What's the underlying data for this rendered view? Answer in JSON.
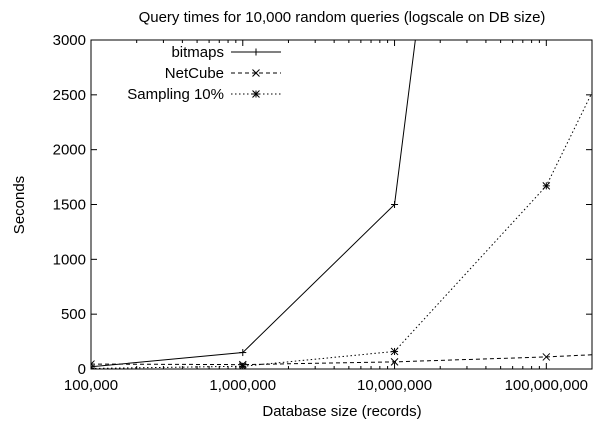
{
  "chart_data": {
    "type": "line",
    "title": "Query times for 10,000 random queries (logscale on DB size)",
    "xlabel": "Database size (records)",
    "ylabel": "Seconds",
    "x_scale": "log",
    "xlim": [
      100000,
      200000000
    ],
    "ylim": [
      0,
      3000
    ],
    "x_ticks": [
      100000,
      1000000,
      10000000,
      100000000
    ],
    "x_tick_labels": [
      "100,000",
      "1,000,000",
      "10,000,000",
      "100,000,000"
    ],
    "y_ticks": [
      0,
      500,
      1000,
      1500,
      2000,
      2500,
      3000
    ],
    "y_tick_labels": [
      "0",
      "500",
      "1000",
      "1500",
      "2000",
      "2500",
      "3000"
    ],
    "grid": false,
    "legend_position": "top-left",
    "series": [
      {
        "name": "bitmaps",
        "line_style": "solid",
        "marker": "plus",
        "x": [
          100000,
          1000000,
          10000000,
          14000000
        ],
        "y": [
          20,
          150,
          1500,
          3100
        ]
      },
      {
        "name": "NetCube",
        "line_style": "dashed",
        "marker": "cross",
        "x": [
          100000,
          1000000,
          10000000,
          100000000,
          200000000
        ],
        "y": [
          45,
          40,
          65,
          110,
          130
        ]
      },
      {
        "name": "Sampling 10%",
        "line_style": "dotted",
        "marker": "star",
        "x": [
          100000,
          1000000,
          10000000,
          100000000,
          200000000
        ],
        "y": [
          5,
          25,
          160,
          1670,
          2520
        ]
      }
    ]
  }
}
